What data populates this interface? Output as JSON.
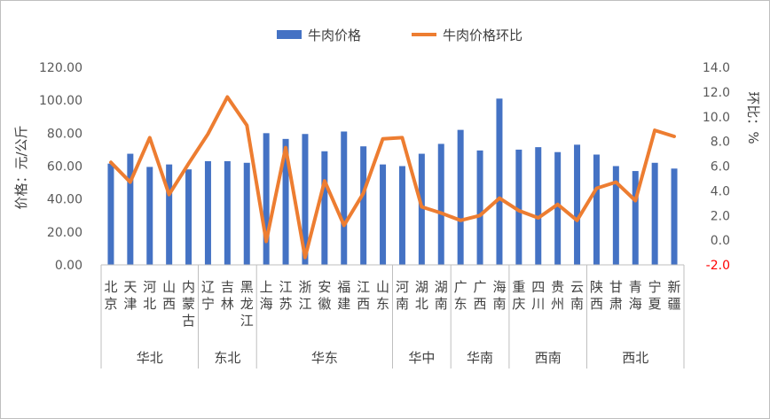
{
  "chart_data": {
    "type": "bar+line",
    "legend": {
      "position": "top",
      "bar_label": "牛肉价格",
      "line_label": "牛肉价格环比"
    },
    "y_left": {
      "label": "价格：元/公斤",
      "ylim": [
        0,
        120
      ],
      "ticks": [
        "0.00",
        "20.00",
        "40.00",
        "60.00",
        "80.00",
        "100.00",
        "120.00"
      ]
    },
    "y_right": {
      "label": "环比：%",
      "ylim": [
        -2,
        14
      ],
      "ticks": [
        "-2.0",
        "0.0",
        "2.0",
        "4.0",
        "6.0",
        "8.0",
        "10.0",
        "12.0",
        "14.0"
      ],
      "negative_color": "#ff0000"
    },
    "categories": [
      {
        "name": "北京",
        "group": "华北"
      },
      {
        "name": "天津",
        "group": "华北"
      },
      {
        "name": "河北",
        "group": "华北"
      },
      {
        "name": "山西",
        "group": "华北"
      },
      {
        "name": "内蒙古",
        "group": "华北"
      },
      {
        "name": "辽宁",
        "group": "东北"
      },
      {
        "name": "吉林",
        "group": "东北"
      },
      {
        "name": "黑龙江",
        "group": "东北"
      },
      {
        "name": "上海",
        "group": "华东"
      },
      {
        "name": "江苏",
        "group": "华东"
      },
      {
        "name": "浙江",
        "group": "华东"
      },
      {
        "name": "安徽",
        "group": "华东"
      },
      {
        "name": "福建",
        "group": "华东"
      },
      {
        "name": "江西",
        "group": "华东"
      },
      {
        "name": "山东",
        "group": "华东"
      },
      {
        "name": "河南",
        "group": "华中"
      },
      {
        "name": "湖北",
        "group": "华中"
      },
      {
        "name": "湖南",
        "group": "华中"
      },
      {
        "name": "广东",
        "group": "华南"
      },
      {
        "name": "广西",
        "group": "华南"
      },
      {
        "name": "海南",
        "group": "华南"
      },
      {
        "name": "重庆",
        "group": "西南"
      },
      {
        "name": "四川",
        "group": "西南"
      },
      {
        "name": "贵州",
        "group": "西南"
      },
      {
        "name": "云南",
        "group": "西南"
      },
      {
        "name": "陕西",
        "group": "西北"
      },
      {
        "name": "甘肃",
        "group": "西北"
      },
      {
        "name": "青海",
        "group": "西北"
      },
      {
        "name": "宁夏",
        "group": "西北"
      },
      {
        "name": "新疆",
        "group": "西北"
      }
    ],
    "groups": [
      "华北",
      "东北",
      "华东",
      "华中",
      "华南",
      "西南",
      "西北"
    ],
    "series": [
      {
        "name": "牛肉价格",
        "type": "bar",
        "axis": "left",
        "color": "#4472c4",
        "values": [
          61.5,
          67.5,
          59.5,
          61.0,
          58.0,
          63.0,
          63.0,
          62.0,
          80.0,
          76.5,
          79.5,
          69.0,
          81.0,
          72.0,
          61.0,
          60.0,
          67.5,
          73.5,
          82.0,
          69.5,
          101.0,
          70.0,
          71.5,
          68.5,
          73.0,
          67.0,
          60.0,
          57.0,
          62.0,
          58.5
        ]
      },
      {
        "name": "牛肉价格环比",
        "type": "line",
        "axis": "right",
        "color": "#ed7d31",
        "values": [
          6.3,
          4.7,
          8.3,
          3.7,
          6.2,
          8.6,
          11.6,
          9.3,
          -0.1,
          7.5,
          -1.4,
          4.8,
          1.2,
          3.8,
          8.2,
          8.3,
          2.7,
          2.2,
          1.6,
          2.0,
          3.4,
          2.4,
          1.8,
          2.9,
          1.6,
          4.2,
          4.7,
          3.2,
          8.9,
          8.4
        ]
      }
    ]
  }
}
